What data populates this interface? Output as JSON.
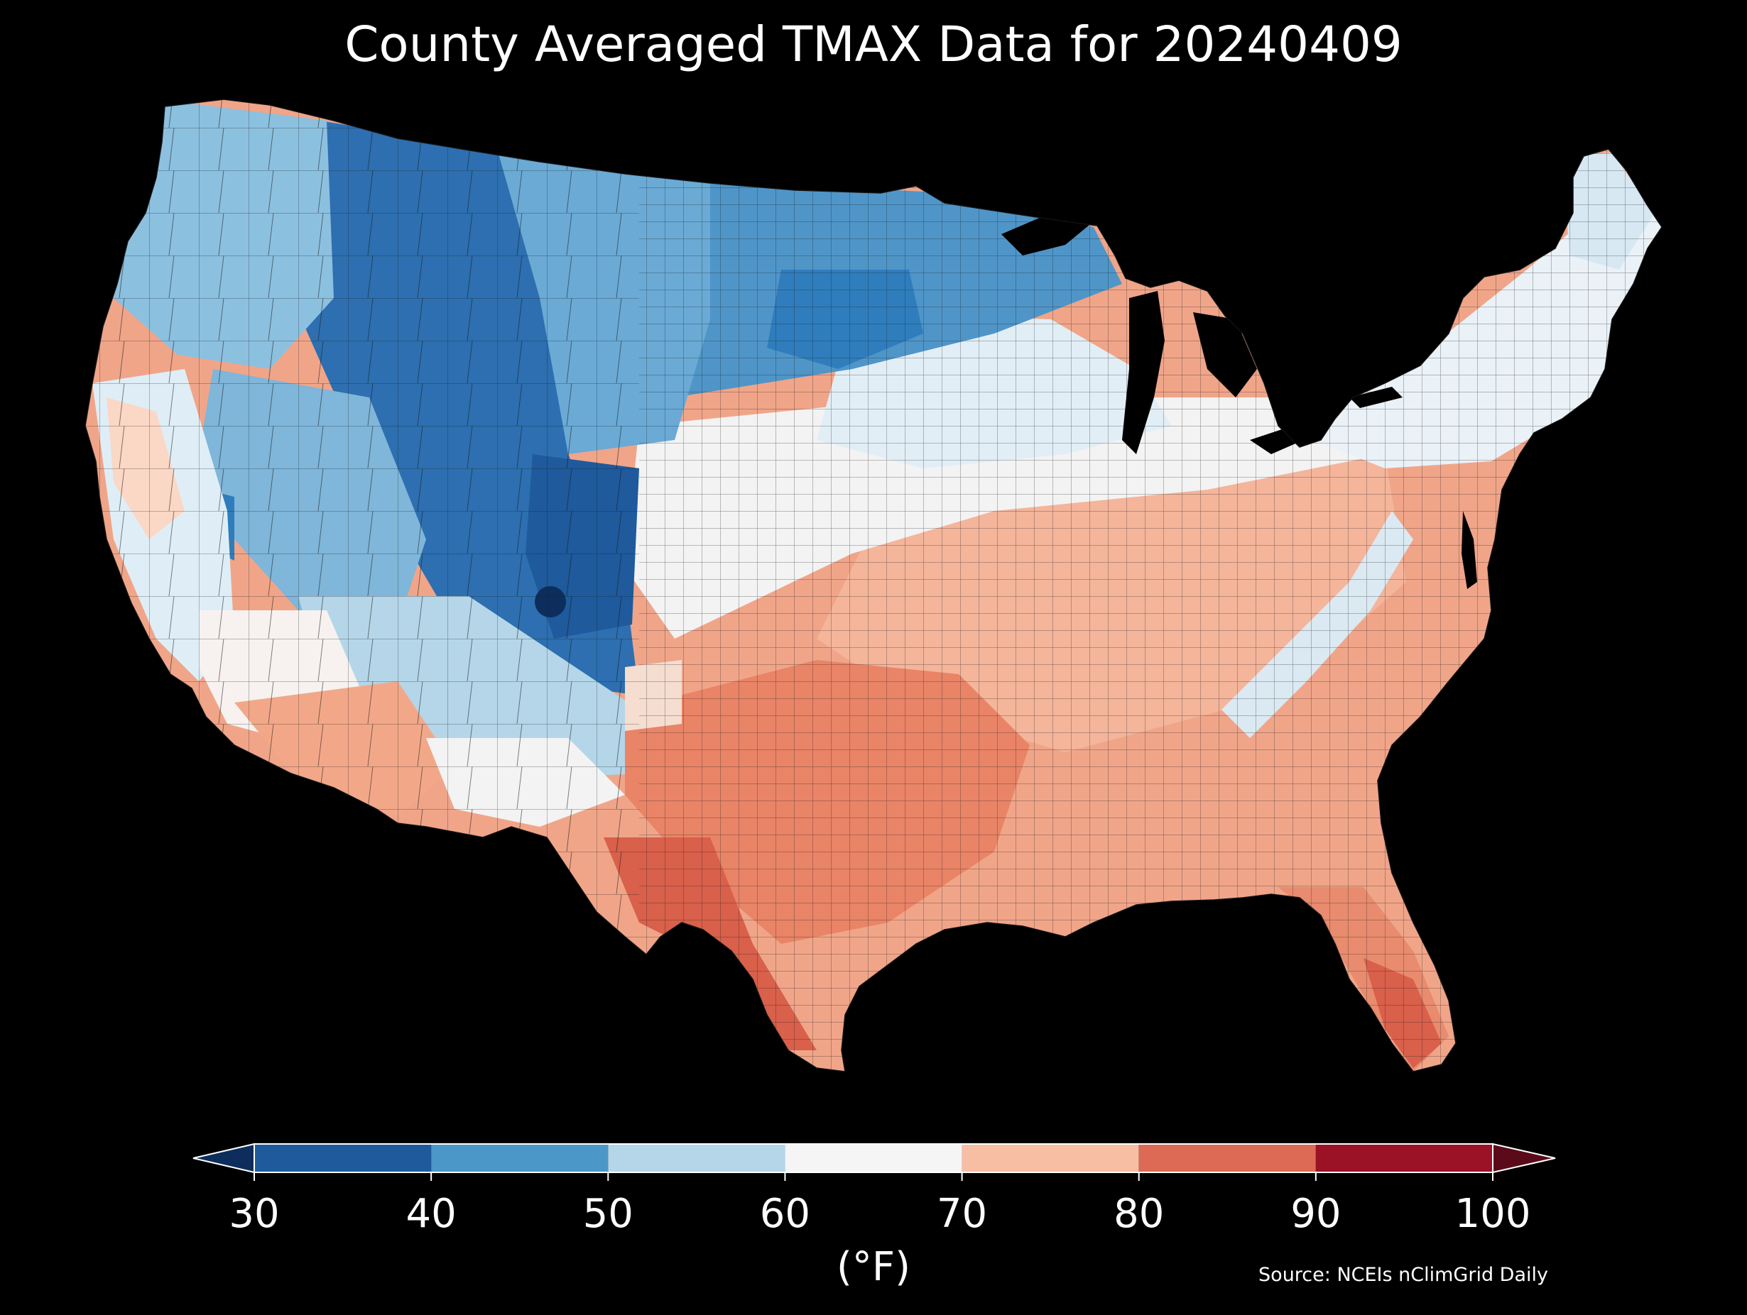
{
  "title": "County Averaged TMAX Data for 20240409",
  "colorbar": {
    "units": "(°F)",
    "ticks": [
      "30",
      "40",
      "50",
      "60",
      "70",
      "80",
      "90",
      "100"
    ],
    "bins": [
      {
        "from": 30,
        "to": 40,
        "color": "#1e5a9c"
      },
      {
        "from": 40,
        "to": 50,
        "color": "#4b98c8"
      },
      {
        "from": 50,
        "to": 60,
        "color": "#b4d6e8"
      },
      {
        "from": 60,
        "to": 70,
        "color": "#f5f5f5"
      },
      {
        "from": 70,
        "to": 80,
        "color": "#f7bea3"
      },
      {
        "from": 80,
        "to": 90,
        "color": "#dc6a55"
      },
      {
        "from": 90,
        "to": 100,
        "color": "#9b1126"
      }
    ],
    "under_color": "#0d2e5c",
    "over_color": "#5b0a1a"
  },
  "source": "Source: NCEIs nClimGrid Daily",
  "map_regions": [
    {
      "name": "pacific-northwest",
      "color": "#7fb6da"
    },
    {
      "name": "california-coast",
      "color": "#dfeef6"
    },
    {
      "name": "central-valley",
      "color": "#fbd7c5"
    },
    {
      "name": "great-basin",
      "color": "#7fb6da"
    },
    {
      "name": "rocky-mountains",
      "color": "#2d6fb0"
    },
    {
      "name": "northern-plains",
      "color": "#5a9fcf"
    },
    {
      "name": "upper-midwest",
      "color": "#2f7dbc"
    },
    {
      "name": "desert-southwest",
      "color": "#f2a888"
    },
    {
      "name": "southern-plains",
      "color": "#e98467"
    },
    {
      "name": "south-texas",
      "color": "#d9604b"
    },
    {
      "name": "southeast",
      "color": "#f0a589"
    },
    {
      "name": "florida",
      "color": "#e88b6e"
    },
    {
      "name": "ohio-valley",
      "color": "#f4b59b"
    },
    {
      "name": "appalachia",
      "color": "#dbe9f2"
    },
    {
      "name": "northeast",
      "color": "#eaf2f8"
    },
    {
      "name": "great-lakes",
      "color": "#000000"
    }
  ]
}
